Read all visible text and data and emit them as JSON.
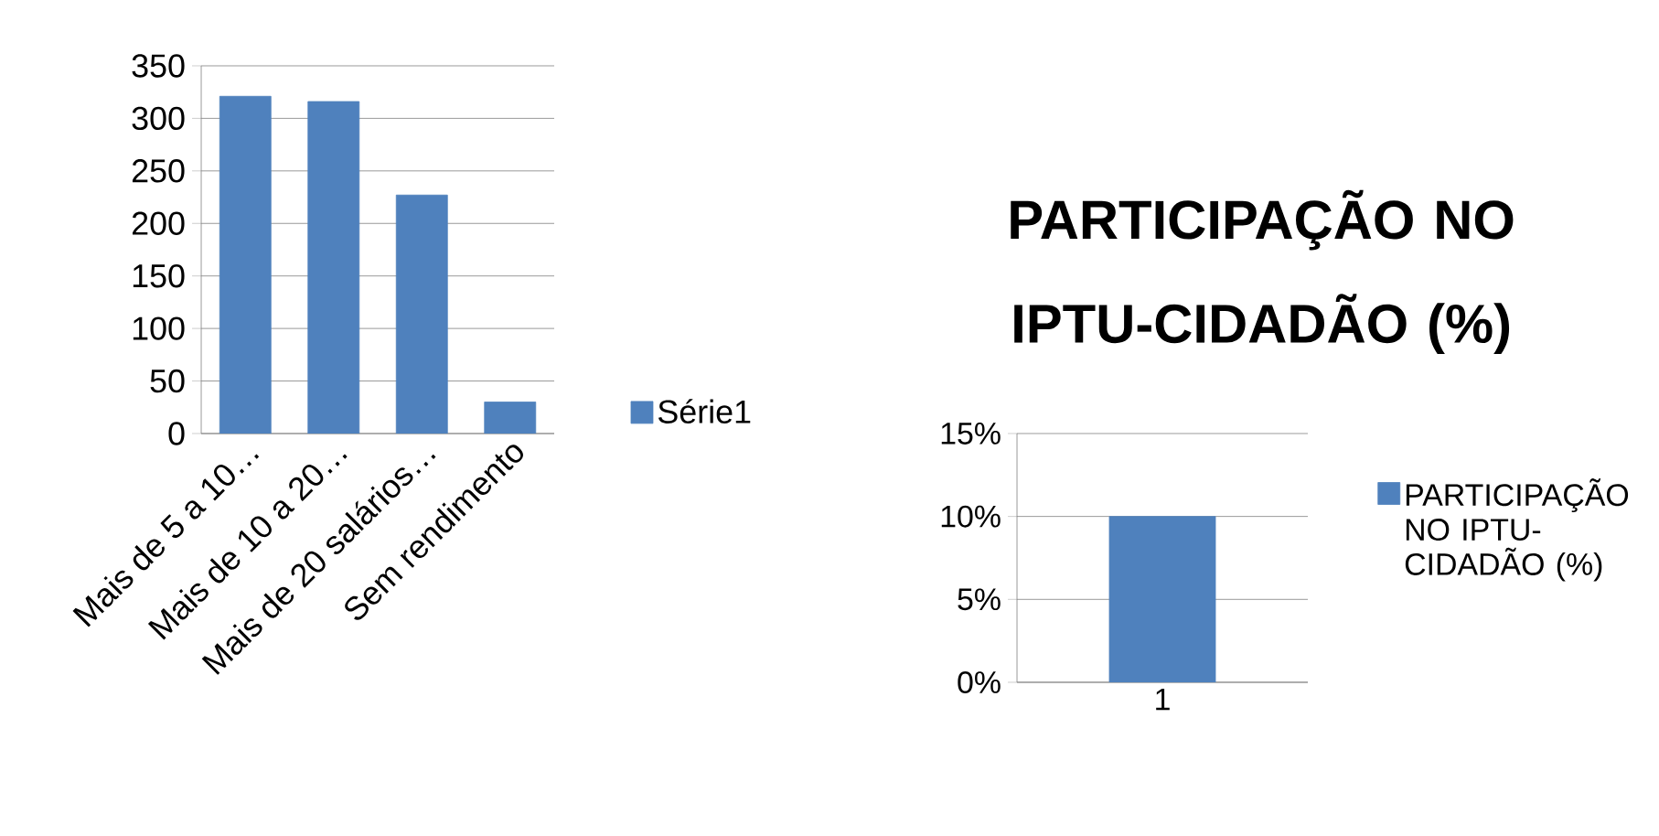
{
  "chart_data": [
    {
      "type": "bar",
      "categories": [
        "Mais de 5 a 10…",
        "Mais de 10 a 20…",
        "Mais de 20 salários…",
        "Sem rendimento"
      ],
      "series": [
        {
          "name": "Série1",
          "color": "#4f81bd",
          "values": [
            321,
            316,
            227,
            30
          ]
        }
      ],
      "ylim": [
        0,
        350
      ],
      "yticks": [
        0,
        50,
        100,
        150,
        200,
        250,
        300,
        350
      ],
      "grid": "y",
      "legend": "right"
    },
    {
      "type": "bar",
      "title": "PARTICIPAÇÃO NO IPTU-CIDADÃO (%)",
      "categories": [
        "1"
      ],
      "series": [
        {
          "name": "PARTICIPAÇÃO NO IPTU-CIDADÃO (%)",
          "color": "#4f81bd",
          "values": [
            10
          ]
        }
      ],
      "ylim": [
        0,
        15
      ],
      "yticks": [
        {
          "value": 0,
          "label": "0%"
        },
        {
          "value": 5,
          "label": "5%"
        },
        {
          "value": 10,
          "label": "10%"
        },
        {
          "value": 15,
          "label": "15%"
        }
      ],
      "grid": "y",
      "legend": "right"
    }
  ]
}
